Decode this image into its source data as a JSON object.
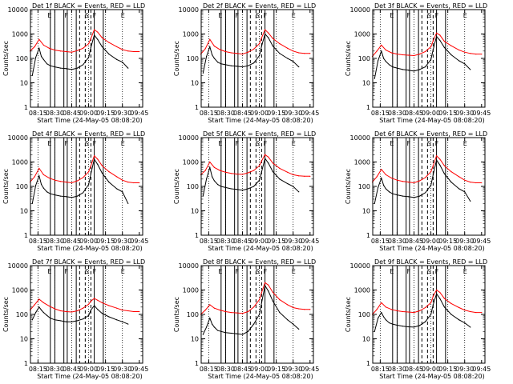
{
  "figure": {
    "ylabel": "Counts/sec",
    "xlabel": "Start Time (24-May-05 08:08:20)"
  },
  "shared": {
    "yticks": [
      "1",
      "10",
      "100",
      "1000",
      "10000"
    ],
    "xticks": [
      "08:15",
      "08:30",
      "08:45",
      "09:00",
      "09:15",
      "09:30",
      "09:45"
    ],
    "top_labels": [
      "E",
      "F",
      "S",
      "F",
      "E"
    ]
  },
  "colors": {
    "events": "#000000",
    "lld": "#ff0000",
    "axis": "#000000"
  },
  "chart_data": [
    {
      "type": "line",
      "title": "Det 1f BLACK = Events, RED = LLD",
      "ylog": true,
      "ylim": [
        1,
        10000
      ],
      "xlim": [
        "08:08:20",
        "09:48:00"
      ],
      "series": [
        {
          "name": "Events",
          "x": [
            "08:10",
            "08:13",
            "08:16",
            "08:18",
            "08:20",
            "08:23",
            "08:26",
            "08:30",
            "08:35",
            "08:40",
            "08:45",
            "08:50",
            "08:55",
            "09:00",
            "09:02",
            "09:05",
            "09:08",
            "09:12",
            "09:18",
            "09:25",
            "09:30",
            "09:35"
          ],
          "values": [
            20,
            110,
            260,
            120,
            90,
            60,
            50,
            45,
            40,
            38,
            35,
            40,
            55,
            110,
            280,
            900,
            600,
            300,
            150,
            90,
            70,
            40
          ]
        },
        {
          "name": "LLD",
          "x": [
            "08:08",
            "08:12",
            "08:16",
            "08:20",
            "08:25",
            "08:30",
            "08:35",
            "08:40",
            "08:45",
            "08:50",
            "08:55",
            "09:00",
            "09:02",
            "09:05",
            "09:08",
            "09:12",
            "09:18",
            "09:25",
            "09:30",
            "09:35",
            "09:40",
            "09:45"
          ],
          "values": [
            200,
            300,
            600,
            350,
            260,
            220,
            200,
            190,
            180,
            210,
            260,
            400,
            650,
            1500,
            1200,
            700,
            450,
            300,
            230,
            200,
            190,
            190
          ]
        }
      ]
    },
    {
      "type": "line",
      "title": "Det 2f BLACK = Events, RED = LLD",
      "ylog": true,
      "ylim": [
        1,
        10000
      ],
      "xlim": [
        "08:08:20",
        "09:48:00"
      ],
      "series": [
        {
          "name": "Events",
          "x": [
            "08:10",
            "08:13",
            "08:16",
            "08:18",
            "08:20",
            "08:23",
            "08:26",
            "08:30",
            "08:35",
            "08:40",
            "08:45",
            "08:50",
            "08:55",
            "09:00",
            "09:02",
            "09:05",
            "09:08",
            "09:12",
            "09:18",
            "09:25",
            "09:30",
            "09:35"
          ],
          "values": [
            25,
            120,
            300,
            140,
            100,
            70,
            60,
            55,
            50,
            48,
            45,
            50,
            65,
            130,
            320,
            1000,
            700,
            320,
            160,
            100,
            75,
            45
          ]
        },
        {
          "name": "LLD",
          "x": [
            "08:08",
            "08:12",
            "08:16",
            "08:20",
            "08:25",
            "08:30",
            "08:35",
            "08:40",
            "08:45",
            "08:50",
            "08:55",
            "09:00",
            "09:02",
            "09:05",
            "09:08",
            "09:12",
            "09:18",
            "09:25",
            "09:30",
            "09:35",
            "09:40",
            "09:45"
          ],
          "values": [
            150,
            250,
            600,
            320,
            230,
            190,
            170,
            160,
            150,
            180,
            240,
            400,
            700,
            1500,
            1100,
            650,
            400,
            260,
            200,
            170,
            160,
            160
          ]
        }
      ]
    },
    {
      "type": "line",
      "title": "Det 3f BLACK = Events, RED = LLD",
      "ylog": true,
      "ylim": [
        1,
        10000
      ],
      "xlim": [
        "08:08:20",
        "09:48:00"
      ],
      "series": [
        {
          "name": "Events",
          "x": [
            "08:10",
            "08:13",
            "08:16",
            "08:18",
            "08:20",
            "08:23",
            "08:26",
            "08:30",
            "08:35",
            "08:40",
            "08:45",
            "08:50",
            "08:55",
            "09:00",
            "09:02",
            "09:05",
            "09:08",
            "09:12",
            "09:18",
            "09:25",
            "09:30",
            "09:35"
          ],
          "values": [
            15,
            80,
            200,
            100,
            75,
            55,
            45,
            40,
            35,
            33,
            30,
            35,
            45,
            90,
            230,
            800,
            550,
            280,
            140,
            80,
            60,
            35
          ]
        },
        {
          "name": "LLD",
          "x": [
            "08:08",
            "08:12",
            "08:16",
            "08:20",
            "08:25",
            "08:30",
            "08:35",
            "08:40",
            "08:45",
            "08:50",
            "08:55",
            "09:00",
            "09:02",
            "09:05",
            "09:08",
            "09:12",
            "09:18",
            "09:25",
            "09:30",
            "09:35",
            "09:40",
            "09:45"
          ],
          "values": [
            120,
            200,
            350,
            220,
            170,
            150,
            140,
            135,
            130,
            150,
            190,
            300,
            520,
            1100,
            900,
            500,
            330,
            220,
            180,
            160,
            150,
            150
          ]
        }
      ]
    },
    {
      "type": "line",
      "title": "Det 4f BLACK = Events, RED = LLD",
      "ylog": true,
      "ylim": [
        1,
        10000
      ],
      "xlim": [
        "08:08:20",
        "09:48:00"
      ],
      "series": [
        {
          "name": "Events",
          "x": [
            "08:10",
            "08:13",
            "08:16",
            "08:18",
            "08:20",
            "08:23",
            "08:26",
            "08:30",
            "08:35",
            "08:40",
            "08:45",
            "08:50",
            "08:55",
            "09:00",
            "09:02",
            "09:05",
            "09:08",
            "09:12",
            "09:18",
            "09:25",
            "09:30",
            "09:35"
          ],
          "values": [
            20,
            110,
            270,
            120,
            85,
            60,
            50,
            45,
            40,
            38,
            35,
            40,
            55,
            120,
            330,
            1300,
            800,
            350,
            150,
            80,
            60,
            20
          ]
        },
        {
          "name": "LLD",
          "x": [
            "08:08",
            "08:12",
            "08:16",
            "08:20",
            "08:25",
            "08:30",
            "08:35",
            "08:40",
            "08:45",
            "08:50",
            "08:55",
            "09:00",
            "09:02",
            "09:05",
            "09:08",
            "09:12",
            "09:18",
            "09:25",
            "09:30",
            "09:35",
            "09:40",
            "09:45"
          ],
          "values": [
            150,
            250,
            550,
            300,
            220,
            180,
            160,
            150,
            140,
            170,
            230,
            400,
            700,
            1800,
            1300,
            700,
            400,
            250,
            180,
            150,
            140,
            140
          ]
        }
      ]
    },
    {
      "type": "line",
      "title": "Det 5f BLACK = Events, RED = LLD",
      "ylog": true,
      "ylim": [
        1,
        10000
      ],
      "xlim": [
        "08:08:20",
        "09:48:00"
      ],
      "series": [
        {
          "name": "Events",
          "x": [
            "08:10",
            "08:13",
            "08:16",
            "08:18",
            "08:20",
            "08:23",
            "08:26",
            "08:30",
            "08:35",
            "08:40",
            "08:45",
            "08:50",
            "08:55",
            "09:00",
            "09:02",
            "09:05",
            "09:08",
            "09:12",
            "09:18",
            "09:25",
            "09:30",
            "09:35"
          ],
          "values": [
            40,
            200,
            600,
            250,
            170,
            120,
            100,
            90,
            80,
            75,
            70,
            80,
            100,
            180,
            400,
            1400,
            900,
            400,
            200,
            130,
            100,
            60
          ]
        },
        {
          "name": "LLD",
          "x": [
            "08:08",
            "08:12",
            "08:16",
            "08:20",
            "08:25",
            "08:30",
            "08:35",
            "08:40",
            "08:45",
            "08:50",
            "08:55",
            "09:00",
            "09:02",
            "09:05",
            "09:08",
            "09:12",
            "09:18",
            "09:25",
            "09:30",
            "09:35",
            "09:40",
            "09:45"
          ],
          "values": [
            300,
            450,
            1000,
            600,
            450,
            380,
            340,
            320,
            310,
            360,
            450,
            700,
            1100,
            2000,
            1600,
            900,
            550,
            380,
            300,
            270,
            260,
            260
          ]
        }
      ]
    },
    {
      "type": "line",
      "title": "Det 6f BLACK = Events, RED = LLD",
      "ylog": true,
      "ylim": [
        1,
        10000
      ],
      "xlim": [
        "08:08:20",
        "09:48:00"
      ],
      "series": [
        {
          "name": "Events",
          "x": [
            "08:10",
            "08:13",
            "08:16",
            "08:18",
            "08:20",
            "08:23",
            "08:26",
            "08:30",
            "08:35",
            "08:40",
            "08:45",
            "08:50",
            "08:55",
            "09:00",
            "09:02",
            "09:05",
            "09:08",
            "09:12",
            "09:18",
            "09:25",
            "09:30",
            "09:35"
          ],
          "values": [
            20,
            90,
            220,
            110,
            80,
            60,
            50,
            45,
            40,
            38,
            35,
            40,
            55,
            110,
            300,
            1200,
            750,
            330,
            150,
            80,
            60,
            25
          ]
        },
        {
          "name": "LLD",
          "x": [
            "08:08",
            "08:12",
            "08:16",
            "08:20",
            "08:25",
            "08:30",
            "08:35",
            "08:40",
            "08:45",
            "08:50",
            "08:55",
            "09:00",
            "09:02",
            "09:05",
            "09:08",
            "09:12",
            "09:18",
            "09:25",
            "09:30",
            "09:35",
            "09:40",
            "09:45"
          ],
          "values": [
            150,
            250,
            500,
            300,
            220,
            180,
            160,
            150,
            140,
            170,
            230,
            400,
            700,
            1800,
            1300,
            700,
            400,
            250,
            180,
            150,
            140,
            140
          ]
        }
      ]
    },
    {
      "type": "line",
      "title": "Det 7f BLACK = Events, RED = LLD",
      "ylog": true,
      "ylim": [
        1,
        10000
      ],
      "xlim": [
        "08:08:20",
        "09:48:00"
      ],
      "series": [
        {
          "name": "Events",
          "x": [
            "08:10",
            "08:13",
            "08:16",
            "08:18",
            "08:20",
            "08:23",
            "08:26",
            "08:30",
            "08:35",
            "08:40",
            "08:45",
            "08:50",
            "08:55",
            "09:00",
            "09:02",
            "09:05",
            "09:08",
            "09:12",
            "09:18",
            "09:25",
            "09:30",
            "09:35"
          ],
          "values": [
            60,
            120,
            200,
            150,
            120,
            90,
            70,
            60,
            55,
            50,
            50,
            55,
            65,
            90,
            150,
            230,
            160,
            110,
            80,
            60,
            50,
            40
          ]
        },
        {
          "name": "LLD",
          "x": [
            "08:08",
            "08:12",
            "08:16",
            "08:20",
            "08:25",
            "08:30",
            "08:35",
            "08:40",
            "08:45",
            "08:50",
            "08:55",
            "09:00",
            "09:02",
            "09:05",
            "09:08",
            "09:12",
            "09:18",
            "09:25",
            "09:30",
            "09:35",
            "09:40",
            "09:45"
          ],
          "values": [
            150,
            250,
            420,
            300,
            220,
            170,
            140,
            130,
            125,
            140,
            180,
            260,
            350,
            450,
            380,
            300,
            230,
            180,
            150,
            140,
            130,
            130
          ]
        }
      ]
    },
    {
      "type": "line",
      "title": "Det 8f BLACK = Events, RED = LLD",
      "ylog": true,
      "ylim": [
        1,
        10000
      ],
      "xlim": [
        "08:08:20",
        "09:48:00"
      ],
      "series": [
        {
          "name": "Events",
          "x": [
            "08:10",
            "08:13",
            "08:16",
            "08:18",
            "08:20",
            "08:23",
            "08:26",
            "08:30",
            "08:35",
            "08:40",
            "08:45",
            "08:50",
            "08:55",
            "09:00",
            "09:02",
            "09:05",
            "09:08",
            "09:12",
            "09:18",
            "09:25",
            "09:30",
            "09:35"
          ],
          "values": [
            15,
            30,
            70,
            40,
            30,
            22,
            20,
            18,
            17,
            16,
            15,
            20,
            40,
            100,
            300,
            1500,
            900,
            350,
            120,
            60,
            40,
            25
          ]
        },
        {
          "name": "LLD",
          "x": [
            "08:08",
            "08:12",
            "08:16",
            "08:20",
            "08:25",
            "08:30",
            "08:35",
            "08:40",
            "08:45",
            "08:50",
            "08:55",
            "09:00",
            "09:02",
            "09:05",
            "09:08",
            "09:12",
            "09:18",
            "09:25",
            "09:30",
            "09:35",
            "09:40",
            "09:45"
          ],
          "values": [
            100,
            150,
            250,
            180,
            150,
            130,
            120,
            115,
            110,
            130,
            200,
            400,
            800,
            2000,
            1600,
            800,
            400,
            250,
            190,
            170,
            160,
            160
          ]
        }
      ]
    },
    {
      "type": "line",
      "title": "Det 9f BLACK = Events, RED = LLD",
      "ylog": true,
      "ylim": [
        1,
        10000
      ],
      "xlim": [
        "08:08:20",
        "09:48:00"
      ],
      "series": [
        {
          "name": "Events",
          "x": [
            "08:10",
            "08:13",
            "08:16",
            "08:18",
            "08:20",
            "08:23",
            "08:26",
            "08:30",
            "08:35",
            "08:40",
            "08:45",
            "08:50",
            "08:55",
            "09:00",
            "09:02",
            "09:05",
            "09:08",
            "09:12",
            "09:18",
            "09:25",
            "09:30",
            "09:35"
          ],
          "values": [
            20,
            70,
            120,
            80,
            60,
            45,
            40,
            36,
            33,
            31,
            30,
            35,
            50,
            100,
            250,
            700,
            450,
            200,
            100,
            60,
            45,
            30
          ]
        },
        {
          "name": "LLD",
          "x": [
            "08:08",
            "08:12",
            "08:16",
            "08:20",
            "08:25",
            "08:30",
            "08:35",
            "08:40",
            "08:45",
            "08:50",
            "08:55",
            "09:00",
            "09:02",
            "09:05",
            "09:08",
            "09:12",
            "09:18",
            "09:25",
            "09:30",
            "09:35",
            "09:40",
            "09:45"
          ],
          "values": [
            100,
            160,
            300,
            200,
            160,
            140,
            130,
            125,
            120,
            140,
            190,
            300,
            550,
            1000,
            800,
            450,
            280,
            190,
            150,
            130,
            120,
            120
          ]
        }
      ]
    }
  ]
}
